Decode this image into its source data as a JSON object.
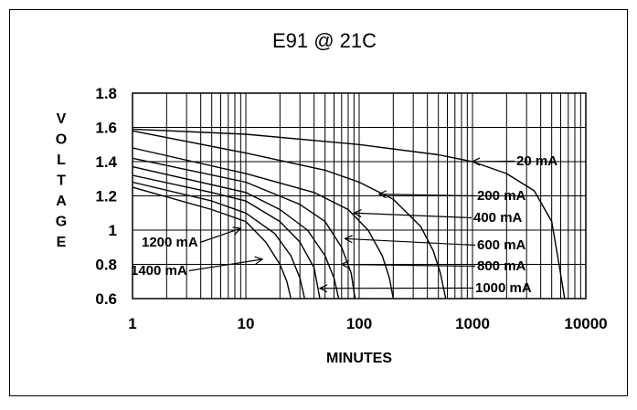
{
  "chart_data": {
    "type": "line",
    "title": "E91 @ 21C",
    "xlabel": "MINUTES",
    "ylabel": "VOLTAGE",
    "x_scale": "log",
    "xlim": [
      1,
      10000
    ],
    "ylim": [
      0.6,
      1.8
    ],
    "x_ticks": [
      1,
      10,
      100,
      1000,
      10000
    ],
    "x_tick_labels": [
      "1",
      "10",
      "100",
      "1000",
      "10000"
    ],
    "y_ticks": [
      0.6,
      0.8,
      1.0,
      1.2,
      1.4,
      1.6,
      1.8
    ],
    "y_tick_labels": [
      "0.6",
      "0.8",
      "1",
      "1.2",
      "1.4",
      "1.6",
      "1.8"
    ],
    "grid": true,
    "legend": "curve labels with arrows",
    "line_color": "#000000",
    "series": [
      {
        "name": "20 mA",
        "x": [
          1,
          10,
          100,
          500,
          1000,
          2000,
          3500,
          5000,
          5800,
          6500
        ],
        "y": [
          1.59,
          1.56,
          1.5,
          1.44,
          1.4,
          1.33,
          1.23,
          1.05,
          0.8,
          0.6
        ]
      },
      {
        "name": "200 mA",
        "x": [
          1,
          10,
          50,
          100,
          200,
          350,
          450,
          520,
          580
        ],
        "y": [
          1.58,
          1.45,
          1.35,
          1.28,
          1.18,
          1.02,
          0.88,
          0.75,
          0.6
        ]
      },
      {
        "name": "400 mA",
        "x": [
          1,
          10,
          40,
          80,
          120,
          160,
          185,
          200
        ],
        "y": [
          1.48,
          1.33,
          1.22,
          1.12,
          1.0,
          0.85,
          0.72,
          0.6
        ]
      },
      {
        "name": "600 mA",
        "x": [
          1,
          10,
          30,
          50,
          70,
          85,
          92
        ],
        "y": [
          1.42,
          1.28,
          1.15,
          1.05,
          0.9,
          0.75,
          0.6
        ]
      },
      {
        "name": "800 mA",
        "x": [
          1,
          10,
          20,
          35,
          50,
          60,
          66
        ],
        "y": [
          1.37,
          1.22,
          1.12,
          1.0,
          0.85,
          0.72,
          0.6
        ]
      },
      {
        "name": "1000 mA",
        "x": [
          1,
          5,
          10,
          20,
          30,
          40,
          45
        ],
        "y": [
          1.32,
          1.22,
          1.17,
          1.05,
          0.93,
          0.78,
          0.6
        ]
      },
      {
        "name": "1200 mA",
        "x": [
          1,
          5,
          10,
          18,
          25,
          30,
          33
        ],
        "y": [
          1.28,
          1.17,
          1.1,
          0.98,
          0.85,
          0.72,
          0.6
        ]
      },
      {
        "name": "1400 mA",
        "x": [
          1,
          5,
          10,
          15,
          20,
          23,
          25
        ],
        "y": [
          1.25,
          1.12,
          1.05,
          0.93,
          0.8,
          0.7,
          0.6
        ]
      }
    ],
    "annotations": [
      {
        "text": "20 mA",
        "arrow_to": {
          "x": 1000,
          "y": 1.4
        }
      },
      {
        "text": "200 mA",
        "arrow_to": {
          "x": 150,
          "y": 1.21
        }
      },
      {
        "text": "400 mA",
        "arrow_to": {
          "x": 90,
          "y": 1.1
        }
      },
      {
        "text": "600 mA",
        "arrow_to": {
          "x": 75,
          "y": 0.95
        }
      },
      {
        "text": "800 mA",
        "arrow_to": {
          "x": 70,
          "y": 0.8
        }
      },
      {
        "text": "1000 mA",
        "arrow_to": {
          "x": 45,
          "y": 0.66
        }
      },
      {
        "text": "1200 mA",
        "arrow_to": {
          "x": 9,
          "y": 1.01
        }
      },
      {
        "text": "1400 mA",
        "arrow_to": {
          "x": 14,
          "y": 0.83
        }
      }
    ]
  }
}
